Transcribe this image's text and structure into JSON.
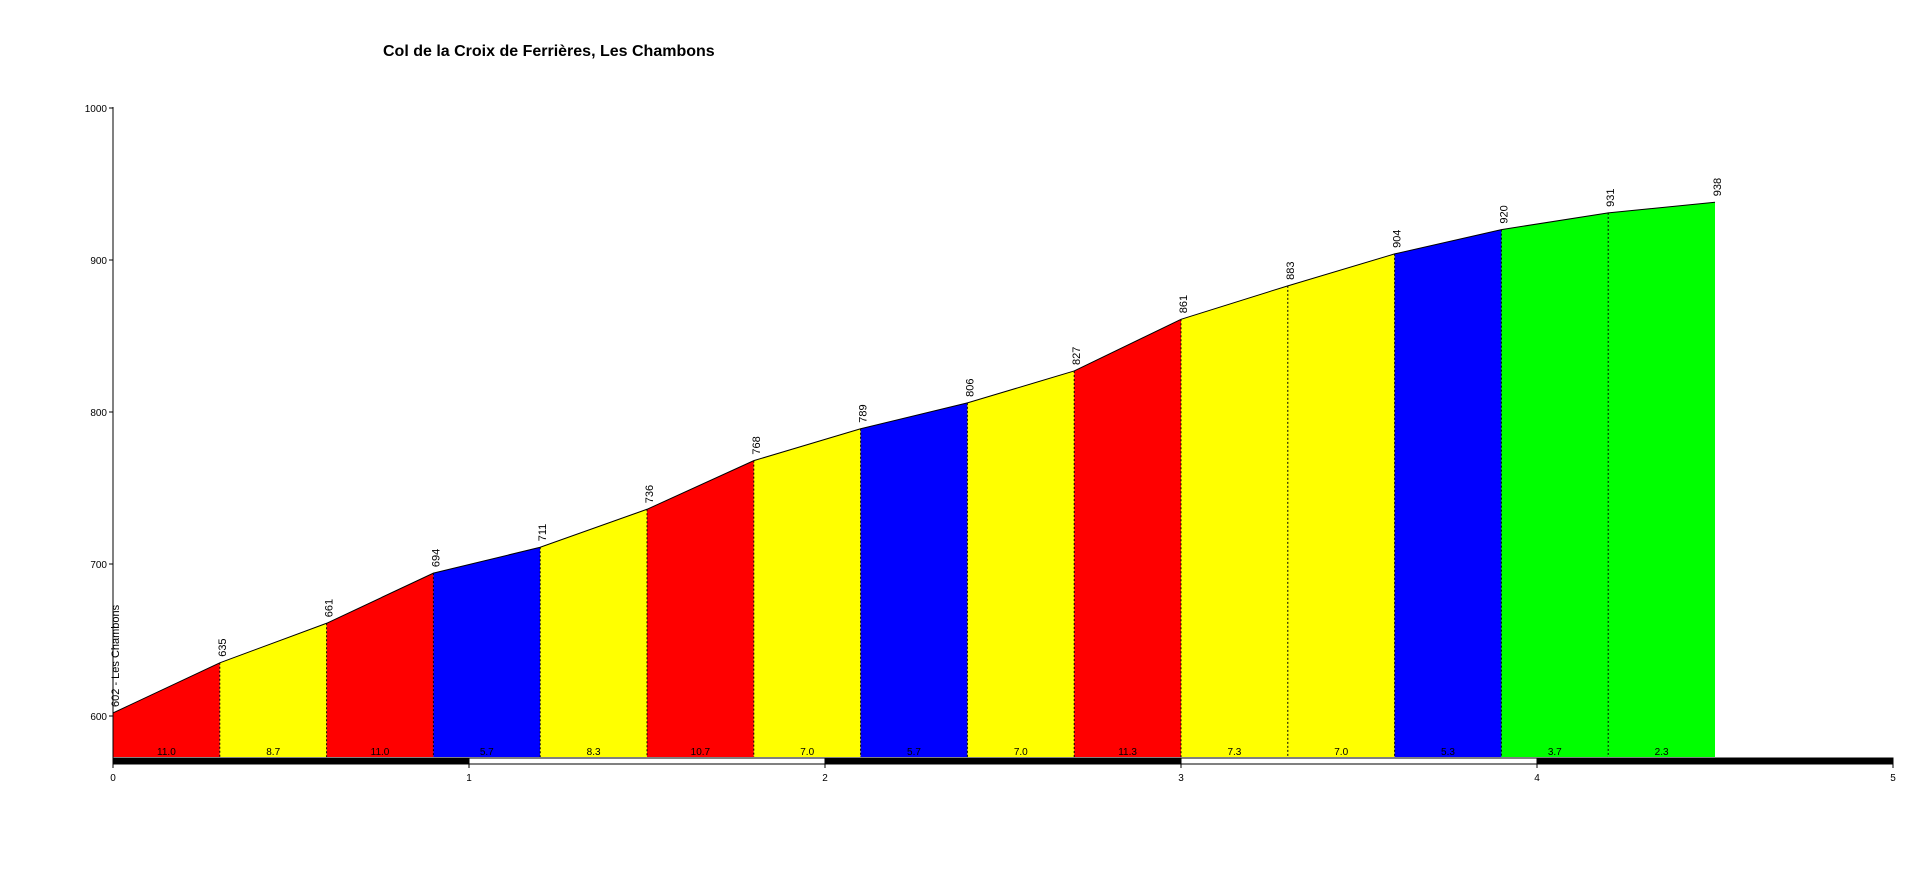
{
  "chart_data": {
    "type": "area",
    "title": "Col de la Croix de Ferrières, Les Chambons",
    "xlabel": "",
    "ylabel": "",
    "xlim": [
      0,
      5
    ],
    "ylim": [
      571,
      1000
    ],
    "x_ticks": [
      "0",
      "1",
      "2",
      "3",
      "4",
      "5"
    ],
    "y_ticks": [
      "600",
      "700",
      "800",
      "900",
      "1000"
    ],
    "start_label": "602 - Les Chambons",
    "points": [
      {
        "x": 0.0,
        "elevation": 602,
        "label": "602 - Les Chambons"
      },
      {
        "x": 0.3,
        "elevation": 635,
        "label": "635"
      },
      {
        "x": 0.6,
        "elevation": 661,
        "label": "661"
      },
      {
        "x": 0.9,
        "elevation": 694,
        "label": "694"
      },
      {
        "x": 1.2,
        "elevation": 711,
        "label": "711"
      },
      {
        "x": 1.5,
        "elevation": 736,
        "label": "736"
      },
      {
        "x": 1.8,
        "elevation": 768,
        "label": "768"
      },
      {
        "x": 2.1,
        "elevation": 789,
        "label": "789"
      },
      {
        "x": 2.4,
        "elevation": 806,
        "label": "806"
      },
      {
        "x": 2.7,
        "elevation": 827,
        "label": "827"
      },
      {
        "x": 3.0,
        "elevation": 861,
        "label": "861"
      },
      {
        "x": 3.3,
        "elevation": 883,
        "label": "883"
      },
      {
        "x": 3.6,
        "elevation": 904,
        "label": "904"
      },
      {
        "x": 3.9,
        "elevation": 920,
        "label": "920"
      },
      {
        "x": 4.2,
        "elevation": 931,
        "label": "931"
      },
      {
        "x": 4.5,
        "elevation": 938,
        "label": "938"
      }
    ],
    "segments": [
      {
        "gradient": "11.0",
        "color": "#ff0000"
      },
      {
        "gradient": "8.7",
        "color": "#ffff00"
      },
      {
        "gradient": "11.0",
        "color": "#ff0000"
      },
      {
        "gradient": "5.7",
        "color": "#0000ff"
      },
      {
        "gradient": "8.3",
        "color": "#ffff00"
      },
      {
        "gradient": "10.7",
        "color": "#ff0000"
      },
      {
        "gradient": "7.0",
        "color": "#ffff00"
      },
      {
        "gradient": "5.7",
        "color": "#0000ff"
      },
      {
        "gradient": "7.0",
        "color": "#ffff00"
      },
      {
        "gradient": "11.3",
        "color": "#ff0000"
      },
      {
        "gradient": "7.3",
        "color": "#ffff00"
      },
      {
        "gradient": "7.0",
        "color": "#ffff00"
      },
      {
        "gradient": "5.3",
        "color": "#0000ff"
      },
      {
        "gradient": "3.7",
        "color": "#00ff00"
      },
      {
        "gradient": "2.3",
        "color": "#00ff00"
      }
    ],
    "grid": false,
    "legend": "none"
  }
}
